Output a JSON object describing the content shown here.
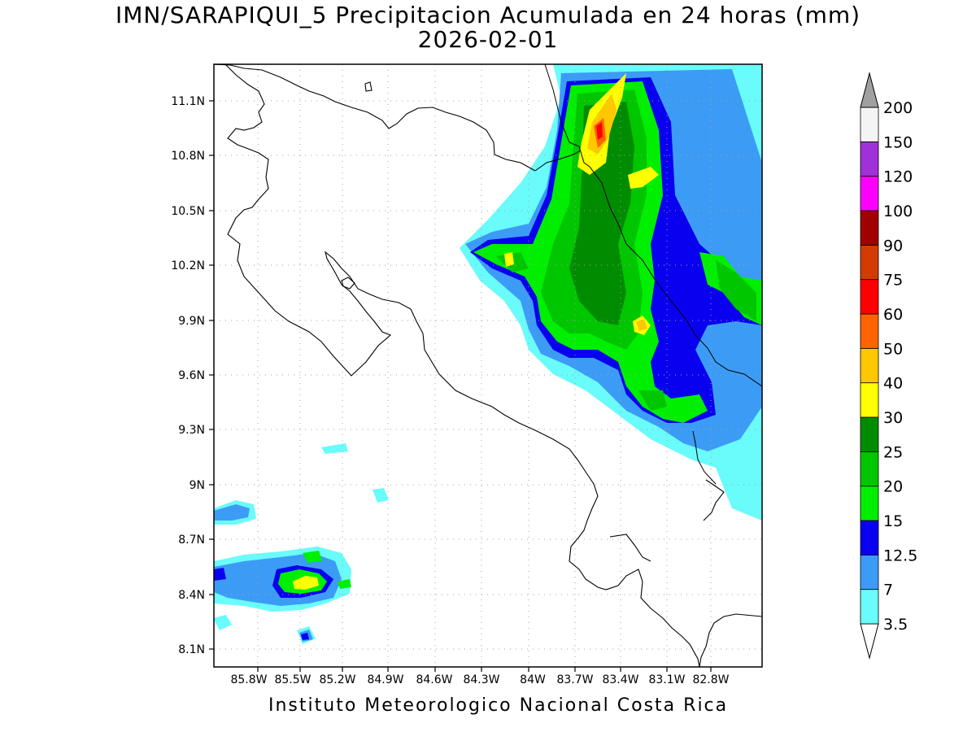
{
  "title": "IMN/SARAPIQUI_5 Precipitacion Acumulada en 24 horas (mm)",
  "date": "2026-02-01",
  "credit": "Instituto Meteorologico Nacional Costa Rica",
  "axes": {
    "lat_ticks": [
      "11.1N",
      "10.8N",
      "10.5N",
      "10.2N",
      "9.9N",
      "9.6N",
      "9.3N",
      "9N",
      "8.7N",
      "8.4N",
      "8.1N"
    ],
    "lon_ticks": [
      "85.8W",
      "85.5W",
      "85.2W",
      "84.9W",
      "84.6W",
      "84.3W",
      "84W",
      "83.7W",
      "83.4W",
      "83.1W",
      "82.8W"
    ]
  },
  "legend": {
    "levels": [
      {
        "label": "3.5",
        "color": "#6afbfb"
      },
      {
        "label": "7",
        "color": "#3c9cf5"
      },
      {
        "label": "12.5",
        "color": "#0a00f0"
      },
      {
        "label": "15",
        "color": "#00ef00"
      },
      {
        "label": "20",
        "color": "#00c600"
      },
      {
        "label": "25",
        "color": "#008c00"
      },
      {
        "label": "30",
        "color": "#ffff00"
      },
      {
        "label": "40",
        "color": "#ffc800"
      },
      {
        "label": "50",
        "color": "#ff6400"
      },
      {
        "label": "60",
        "color": "#ff0000"
      },
      {
        "label": "75",
        "color": "#d23c00"
      },
      {
        "label": "90",
        "color": "#a00000"
      },
      {
        "label": "100",
        "color": "#ff00ff"
      },
      {
        "label": "120",
        "color": "#a030d8"
      },
      {
        "label": "150",
        "color": "#f4f4f4"
      },
      {
        "label": "200",
        "color": "#a0a0a0"
      }
    ]
  }
}
